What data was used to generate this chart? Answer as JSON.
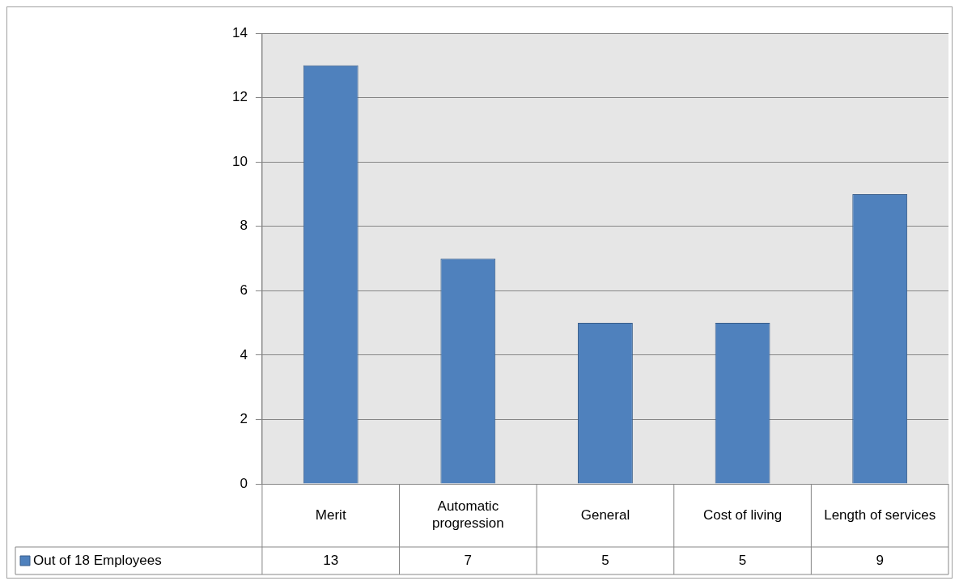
{
  "chart_data": {
    "type": "bar",
    "categories": [
      "Merit",
      "Automatic progression",
      "General",
      "Cost of living",
      "Length of services"
    ],
    "series": [
      {
        "name": "Out of 18 Employees",
        "color": "#4f81bd",
        "values": [
          13,
          7,
          5,
          5,
          9
        ]
      }
    ],
    "ylim": [
      0,
      14
    ],
    "yticks": [
      0,
      2,
      4,
      6,
      8,
      10,
      12,
      14
    ],
    "grid": "y",
    "legend": "bottom",
    "data_labels": true
  }
}
